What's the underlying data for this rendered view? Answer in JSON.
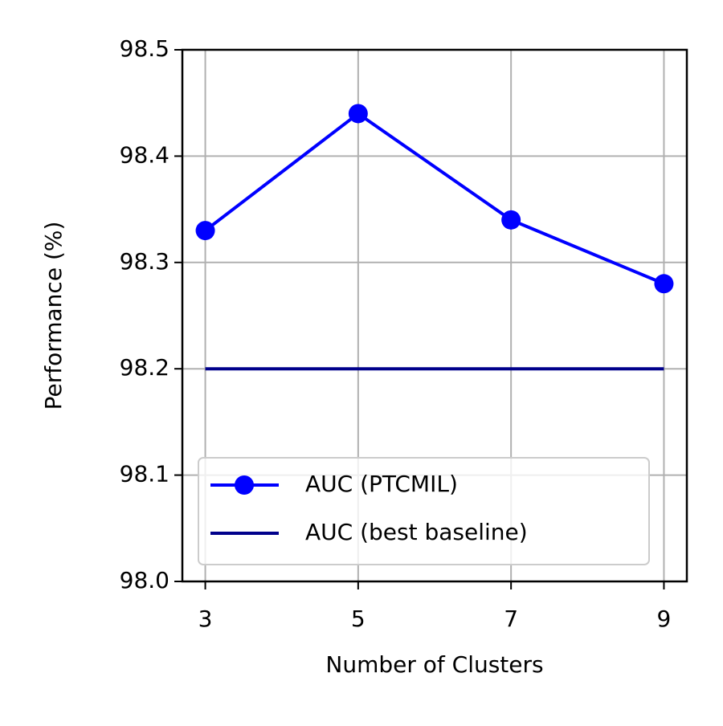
{
  "chart_data": {
    "type": "line",
    "x": [
      3,
      5,
      7,
      9
    ],
    "xlabel": "Number of Clusters",
    "ylabel": "Performance (%)",
    "series": [
      {
        "name": "AUC (PTCMIL)",
        "color": "#0000ff",
        "marker": "circle",
        "values": [
          98.33,
          98.44,
          98.34,
          98.28
        ]
      },
      {
        "name": "AUC (best baseline)",
        "color": "#00008b",
        "values": [
          98.2,
          98.2,
          98.2,
          98.2
        ]
      }
    ],
    "xlim": [
      2.7,
      9.3
    ],
    "xticks": [
      3,
      5,
      7,
      9
    ],
    "ylim": [
      98.0,
      98.5
    ],
    "yticks": [
      {
        "value": 98.0,
        "label": "98.0"
      },
      98.1,
      98.2,
      98.3,
      98.4,
      {
        "value": 98.5,
        "label": "98.5"
      }
    ],
    "grid": true,
    "legend": "lower left"
  }
}
